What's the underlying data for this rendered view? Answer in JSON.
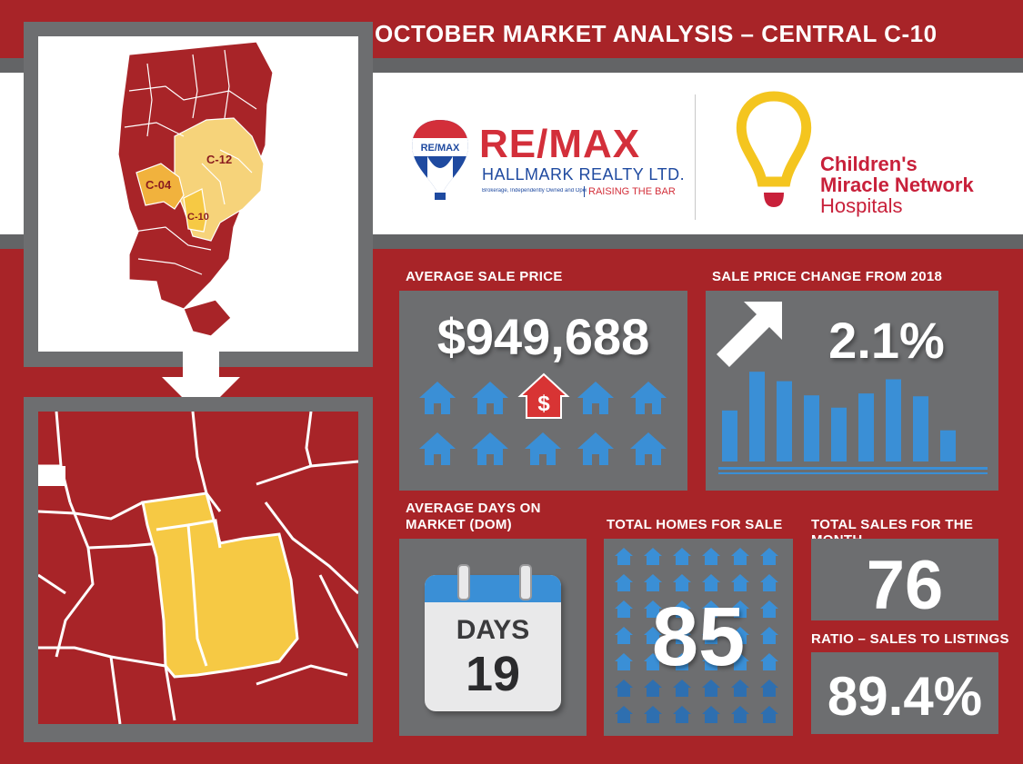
{
  "title": "OCTOBER MARKET ANALYSIS – CENTRAL C-10",
  "map": {
    "labels": [
      "C-04",
      "C-12",
      "C-10"
    ]
  },
  "logos": {
    "remax": {
      "balloon_text": "RE/MAX",
      "name": "RE/MAX",
      "sub": "HALLMARK REALTY LTD.",
      "tagline_small": "Brokerage, Independently Owned and Operated",
      "tagline": "RAISING THE BAR"
    },
    "cmn": {
      "line1": "Children's",
      "line2": "Miracle Network",
      "line3": "Hospitals"
    }
  },
  "stats": {
    "avg_price_label": "AVERAGE SALE PRICE",
    "avg_price": "$949,688",
    "price_change_label": "SALE PRICE CHANGE FROM 2018",
    "price_change": "2.1%",
    "dom_label_1": "AVERAGE DAYS ON",
    "dom_label_2": "MARKET (DOM)",
    "days_word": "DAYS",
    "days_value": "19",
    "homes_label": "TOTAL HOMES FOR SALE",
    "homes_value": "85",
    "sales_label": "TOTAL SALES FOR THE MONTH",
    "sales_value": "76",
    "ratio_label": "RATIO – SALES TO LISTINGS",
    "ratio_value": "89.4%",
    "house_dollar": "$"
  },
  "chart_data": {
    "type": "bar",
    "values": [
      5.4,
      9.5,
      8.5,
      7,
      5.7,
      7.2,
      8.7,
      6.9,
      3.3
    ],
    "ylim": [
      0,
      10
    ]
  },
  "colors": {
    "background": "#a82428",
    "panel": "#6d6e70",
    "bar_blue": "#3a8fd6",
    "map_red": "#a82428",
    "map_yellow": "#f6c944"
  }
}
